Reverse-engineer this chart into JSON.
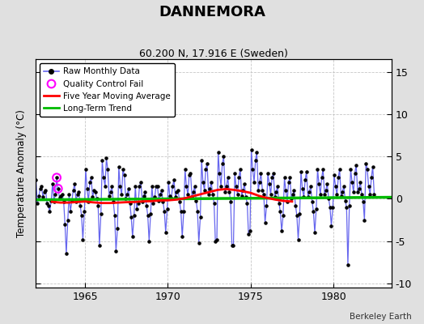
{
  "title": "DANNEMORA",
  "subtitle": "60.200 N, 17.916 E (Sweden)",
  "ylabel": "Temperature Anomaly (°C)",
  "credit": "Berkeley Earth",
  "xlim": [
    1962.0,
    1983.5
  ],
  "ylim": [
    -10.5,
    16.5
  ],
  "yticks": [
    -10,
    -5,
    0,
    5,
    10,
    15
  ],
  "xticks": [
    1965,
    1970,
    1975,
    1980
  ],
  "bg_color": "#e0e0e0",
  "plot_bg_color": "#ffffff",
  "raw_line_color": "#6666ee",
  "raw_dot_color": "#000000",
  "five_yr_color": "#ff0000",
  "trend_color": "#00bb00",
  "qc_fail_color": "#ff00ff",
  "raw_monthly": [
    [
      1962.04,
      2.2
    ],
    [
      1962.12,
      -0.5
    ],
    [
      1962.21,
      0.3
    ],
    [
      1962.29,
      1.2
    ],
    [
      1962.37,
      1.5
    ],
    [
      1962.46,
      0.2
    ],
    [
      1962.54,
      0.8
    ],
    [
      1962.62,
      1.0
    ],
    [
      1962.71,
      -0.5
    ],
    [
      1962.79,
      -0.8
    ],
    [
      1962.87,
      -1.5
    ],
    [
      1962.96,
      -0.2
    ],
    [
      1963.04,
      1.8
    ],
    [
      1963.12,
      -0.3
    ],
    [
      1963.21,
      0.5
    ],
    [
      1963.29,
      2.5
    ],
    [
      1963.37,
      1.2
    ],
    [
      1963.46,
      0.1
    ],
    [
      1963.54,
      0.3
    ],
    [
      1963.62,
      0.5
    ],
    [
      1963.71,
      -0.3
    ],
    [
      1963.79,
      -3.0
    ],
    [
      1963.87,
      -6.5
    ],
    [
      1963.96,
      -2.5
    ],
    [
      1964.04,
      0.5
    ],
    [
      1964.12,
      -1.5
    ],
    [
      1964.21,
      -0.2
    ],
    [
      1964.29,
      1.0
    ],
    [
      1964.37,
      1.8
    ],
    [
      1964.46,
      -0.3
    ],
    [
      1964.54,
      0.5
    ],
    [
      1964.62,
      0.8
    ],
    [
      1964.71,
      -0.8
    ],
    [
      1964.79,
      -2.0
    ],
    [
      1964.87,
      -4.8
    ],
    [
      1964.96,
      -1.5
    ],
    [
      1965.04,
      3.5
    ],
    [
      1965.12,
      1.2
    ],
    [
      1965.21,
      -0.3
    ],
    [
      1965.29,
      2.0
    ],
    [
      1965.37,
      2.5
    ],
    [
      1965.46,
      0.2
    ],
    [
      1965.54,
      1.0
    ],
    [
      1965.62,
      0.8
    ],
    [
      1965.71,
      0.0
    ],
    [
      1965.79,
      -0.8
    ],
    [
      1965.87,
      -5.5
    ],
    [
      1965.96,
      -1.8
    ],
    [
      1966.04,
      4.5
    ],
    [
      1966.12,
      2.5
    ],
    [
      1966.21,
      1.5
    ],
    [
      1966.29,
      4.8
    ],
    [
      1966.37,
      3.5
    ],
    [
      1966.46,
      0.3
    ],
    [
      1966.54,
      0.8
    ],
    [
      1966.62,
      1.5
    ],
    [
      1966.71,
      -0.3
    ],
    [
      1966.79,
      -2.0
    ],
    [
      1966.87,
      -6.2
    ],
    [
      1966.96,
      -3.5
    ],
    [
      1967.04,
      3.8
    ],
    [
      1967.12,
      1.5
    ],
    [
      1967.21,
      0.5
    ],
    [
      1967.29,
      3.5
    ],
    [
      1967.37,
      2.8
    ],
    [
      1967.46,
      0.0
    ],
    [
      1967.54,
      0.5
    ],
    [
      1967.62,
      1.2
    ],
    [
      1967.71,
      -0.5
    ],
    [
      1967.79,
      -2.2
    ],
    [
      1967.87,
      -4.5
    ],
    [
      1967.96,
      -2.0
    ],
    [
      1968.04,
      1.5
    ],
    [
      1968.12,
      -1.2
    ],
    [
      1968.21,
      -0.5
    ],
    [
      1968.29,
      1.5
    ],
    [
      1968.37,
      2.0
    ],
    [
      1968.46,
      -0.3
    ],
    [
      1968.54,
      0.3
    ],
    [
      1968.62,
      0.8
    ],
    [
      1968.71,
      -0.8
    ],
    [
      1968.79,
      -2.0
    ],
    [
      1968.87,
      -5.0
    ],
    [
      1968.96,
      -1.8
    ],
    [
      1969.04,
      1.5
    ],
    [
      1969.12,
      -0.5
    ],
    [
      1969.21,
      0.2
    ],
    [
      1969.29,
      1.5
    ],
    [
      1969.37,
      1.5
    ],
    [
      1969.46,
      -0.2
    ],
    [
      1969.54,
      0.5
    ],
    [
      1969.62,
      1.0
    ],
    [
      1969.71,
      -0.3
    ],
    [
      1969.79,
      -1.5
    ],
    [
      1969.87,
      -4.0
    ],
    [
      1969.96,
      -1.2
    ],
    [
      1970.04,
      2.0
    ],
    [
      1970.12,
      0.3
    ],
    [
      1970.21,
      0.0
    ],
    [
      1970.29,
      1.5
    ],
    [
      1970.37,
      2.2
    ],
    [
      1970.46,
      0.2
    ],
    [
      1970.54,
      0.8
    ],
    [
      1970.62,
      1.0
    ],
    [
      1970.71,
      -0.3
    ],
    [
      1970.79,
      -1.5
    ],
    [
      1970.87,
      -4.5
    ],
    [
      1970.96,
      -1.5
    ],
    [
      1971.04,
      3.5
    ],
    [
      1971.12,
      1.5
    ],
    [
      1971.21,
      0.5
    ],
    [
      1971.29,
      2.8
    ],
    [
      1971.37,
      3.0
    ],
    [
      1971.46,
      0.2
    ],
    [
      1971.54,
      0.8
    ],
    [
      1971.62,
      1.5
    ],
    [
      1971.71,
      -0.2
    ],
    [
      1971.79,
      -1.5
    ],
    [
      1971.87,
      -5.2
    ],
    [
      1971.96,
      -2.2
    ],
    [
      1972.04,
      4.5
    ],
    [
      1972.12,
      2.0
    ],
    [
      1972.21,
      1.0
    ],
    [
      1972.29,
      3.5
    ],
    [
      1972.37,
      4.2
    ],
    [
      1972.46,
      0.5
    ],
    [
      1972.54,
      1.2
    ],
    [
      1972.62,
      2.0
    ],
    [
      1972.71,
      0.5
    ],
    [
      1972.79,
      -0.5
    ],
    [
      1972.87,
      -5.0
    ],
    [
      1972.96,
      -4.8
    ],
    [
      1973.04,
      5.5
    ],
    [
      1973.12,
      3.0
    ],
    [
      1973.21,
      1.5
    ],
    [
      1973.29,
      4.2
    ],
    [
      1973.37,
      5.0
    ],
    [
      1973.46,
      0.8
    ],
    [
      1973.54,
      1.5
    ],
    [
      1973.62,
      2.5
    ],
    [
      1973.71,
      0.8
    ],
    [
      1973.79,
      -0.3
    ],
    [
      1973.87,
      -5.5
    ],
    [
      1973.96,
      -5.5
    ],
    [
      1974.04,
      3.0
    ],
    [
      1974.12,
      1.5
    ],
    [
      1974.21,
      0.5
    ],
    [
      1974.29,
      2.5
    ],
    [
      1974.37,
      3.5
    ],
    [
      1974.46,
      0.3
    ],
    [
      1974.54,
      1.0
    ],
    [
      1974.62,
      1.8
    ],
    [
      1974.71,
      0.2
    ],
    [
      1974.79,
      -0.5
    ],
    [
      1974.87,
      -4.2
    ],
    [
      1974.96,
      -3.8
    ],
    [
      1975.04,
      5.8
    ],
    [
      1975.12,
      3.5
    ],
    [
      1975.21,
      2.0
    ],
    [
      1975.29,
      4.5
    ],
    [
      1975.37,
      5.5
    ],
    [
      1975.46,
      1.0
    ],
    [
      1975.54,
      2.0
    ],
    [
      1975.62,
      3.0
    ],
    [
      1975.71,
      1.0
    ],
    [
      1975.79,
      0.5
    ],
    [
      1975.87,
      -2.8
    ],
    [
      1975.96,
      -0.8
    ],
    [
      1976.04,
      3.0
    ],
    [
      1976.12,
      1.8
    ],
    [
      1976.21,
      0.5
    ],
    [
      1976.29,
      2.5
    ],
    [
      1976.37,
      3.0
    ],
    [
      1976.46,
      0.2
    ],
    [
      1976.54,
      0.8
    ],
    [
      1976.62,
      1.5
    ],
    [
      1976.71,
      -0.5
    ],
    [
      1976.79,
      -1.5
    ],
    [
      1976.87,
      -3.8
    ],
    [
      1976.96,
      -2.0
    ],
    [
      1977.04,
      2.5
    ],
    [
      1977.12,
      1.0
    ],
    [
      1977.21,
      -0.3
    ],
    [
      1977.29,
      2.0
    ],
    [
      1977.37,
      2.5
    ],
    [
      1977.46,
      0.0
    ],
    [
      1977.54,
      0.5
    ],
    [
      1977.62,
      1.0
    ],
    [
      1977.71,
      -0.8
    ],
    [
      1977.79,
      -2.0
    ],
    [
      1977.87,
      -4.8
    ],
    [
      1977.96,
      -1.8
    ],
    [
      1978.04,
      3.2
    ],
    [
      1978.12,
      1.2
    ],
    [
      1978.21,
      0.2
    ],
    [
      1978.29,
      2.2
    ],
    [
      1978.37,
      3.2
    ],
    [
      1978.46,
      0.2
    ],
    [
      1978.54,
      0.8
    ],
    [
      1978.62,
      1.5
    ],
    [
      1978.71,
      -0.3
    ],
    [
      1978.79,
      -1.5
    ],
    [
      1978.87,
      -4.0
    ],
    [
      1978.96,
      -1.2
    ],
    [
      1979.04,
      3.5
    ],
    [
      1979.12,
      1.8
    ],
    [
      1979.21,
      0.5
    ],
    [
      1979.29,
      2.5
    ],
    [
      1979.37,
      3.5
    ],
    [
      1979.46,
      0.5
    ],
    [
      1979.54,
      1.0
    ],
    [
      1979.62,
      1.8
    ],
    [
      1979.71,
      0.0
    ],
    [
      1979.79,
      -1.0
    ],
    [
      1979.87,
      -3.2
    ],
    [
      1979.96,
      -1.0
    ],
    [
      1980.04,
      2.8
    ],
    [
      1980.12,
      1.5
    ],
    [
      1980.21,
      0.5
    ],
    [
      1980.29,
      2.5
    ],
    [
      1980.37,
      3.5
    ],
    [
      1980.46,
      0.3
    ],
    [
      1980.54,
      0.8
    ],
    [
      1980.62,
      1.5
    ],
    [
      1980.71,
      -0.2
    ],
    [
      1980.79,
      -1.0
    ],
    [
      1980.87,
      -7.8
    ],
    [
      1980.96,
      -0.8
    ],
    [
      1981.04,
      3.5
    ],
    [
      1981.12,
      2.0
    ],
    [
      1981.21,
      0.8
    ],
    [
      1981.29,
      3.0
    ],
    [
      1981.37,
      4.0
    ],
    [
      1981.46,
      0.8
    ],
    [
      1981.54,
      1.2
    ],
    [
      1981.62,
      2.0
    ],
    [
      1981.71,
      0.5
    ],
    [
      1981.79,
      -0.3
    ],
    [
      1981.87,
      -2.5
    ],
    [
      1981.96,
      4.2
    ],
    [
      1982.04,
      3.5
    ],
    [
      1982.12,
      1.5
    ],
    [
      1982.21,
      0.5
    ],
    [
      1982.29,
      2.5
    ],
    [
      1982.37,
      3.8
    ],
    [
      1982.46,
      0.5
    ]
  ],
  "qc_fail_points": [
    [
      1963.29,
      2.5
    ],
    [
      1963.37,
      1.2
    ]
  ],
  "five_yr_avg": [
    [
      1963.0,
      -0.35
    ],
    [
      1963.5,
      -0.45
    ],
    [
      1964.0,
      -0.45
    ],
    [
      1964.5,
      -0.38
    ],
    [
      1965.0,
      -0.32
    ],
    [
      1965.5,
      -0.42
    ],
    [
      1966.0,
      -0.5
    ],
    [
      1966.5,
      -0.5
    ],
    [
      1967.0,
      -0.45
    ],
    [
      1967.5,
      -0.4
    ],
    [
      1968.0,
      -0.38
    ],
    [
      1968.5,
      -0.3
    ],
    [
      1969.0,
      -0.28
    ],
    [
      1969.5,
      -0.2
    ],
    [
      1970.0,
      -0.18
    ],
    [
      1970.5,
      -0.1
    ],
    [
      1971.0,
      0.05
    ],
    [
      1971.5,
      0.3
    ],
    [
      1972.0,
      0.55
    ],
    [
      1972.5,
      0.8
    ],
    [
      1973.0,
      1.05
    ],
    [
      1973.5,
      1.15
    ],
    [
      1974.0,
      1.05
    ],
    [
      1974.5,
      0.9
    ],
    [
      1975.0,
      0.7
    ],
    [
      1975.5,
      0.35
    ],
    [
      1976.0,
      0.1
    ],
    [
      1976.5,
      -0.1
    ],
    [
      1977.0,
      -0.25
    ],
    [
      1977.5,
      -0.32
    ]
  ],
  "trend_line": [
    [
      1962.0,
      -0.12
    ],
    [
      1983.5,
      0.18
    ]
  ]
}
